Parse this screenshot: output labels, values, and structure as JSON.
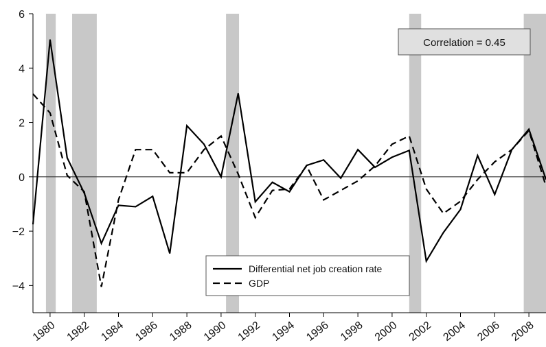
{
  "chart_data": {
    "type": "line",
    "x": [
      1979,
      1980,
      1981,
      1982,
      1983,
      1984,
      1985,
      1986,
      1987,
      1988,
      1989,
      1990,
      1991,
      1992,
      1993,
      1994,
      1995,
      1996,
      1997,
      1998,
      1999,
      2000,
      2001,
      2002,
      2003,
      2004,
      2005,
      2006,
      2007,
      2008,
      2009
    ],
    "series": [
      {
        "name": "Differential net job creation rate",
        "color": "#000000",
        "dash": "solid",
        "values": [
          -1.75,
          5.05,
          0.7,
          -0.6,
          -2.45,
          -1.05,
          -1.1,
          -0.72,
          -2.82,
          1.88,
          1.2,
          0.0,
          3.07,
          -0.92,
          -0.2,
          -0.55,
          0.42,
          0.62,
          -0.05,
          1.0,
          0.35,
          0.72,
          0.97,
          -3.1,
          -2.05,
          -1.2,
          0.78,
          -0.65,
          1.0,
          1.75,
          -0.1
        ]
      },
      {
        "name": "GDP",
        "color": "#000000",
        "dash": "dashed",
        "values": [
          3.05,
          2.35,
          0.05,
          -0.55,
          -4.05,
          -0.85,
          1.0,
          1.0,
          0.15,
          0.15,
          1.0,
          1.5,
          0.1,
          -1.5,
          -0.5,
          -0.45,
          0.4,
          -0.85,
          -0.5,
          -0.15,
          0.4,
          1.2,
          1.5,
          -0.45,
          -1.35,
          -0.9,
          -0.1,
          0.55,
          1.0,
          1.7,
          -0.35
        ]
      }
    ],
    "recessions": [
      [
        1979.76,
        1980.33
      ],
      [
        1981.29,
        1982.73
      ],
      [
        1990.29,
        1991.05
      ],
      [
        2001.0,
        2001.7
      ],
      [
        2007.7,
        2009
      ]
    ],
    "reference_line": 0,
    "annotation": "Correlation = 0.45",
    "xlim": [
      1979,
      2009
    ],
    "ylim": [
      -5,
      6
    ],
    "xticks": [
      1980,
      1982,
      1984,
      1986,
      1988,
      1990,
      1992,
      1994,
      1996,
      1998,
      2000,
      2002,
      2004,
      2006,
      2008
    ],
    "yticks": [
      {
        "value": -4,
        "label": "−4"
      },
      {
        "value": -2,
        "label": "−2"
      },
      0,
      2,
      4,
      6
    ],
    "legend": "lower-center"
  }
}
